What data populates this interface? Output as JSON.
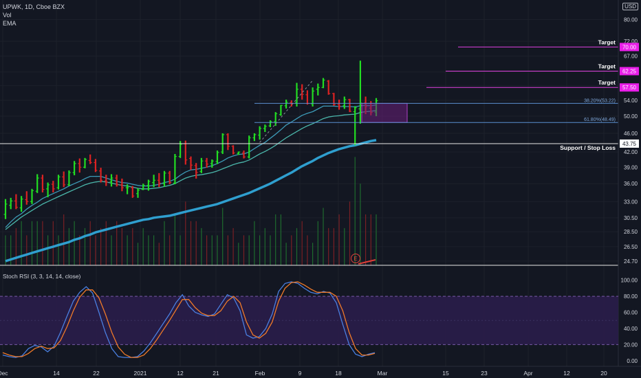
{
  "header": {
    "title": "UPWK, 1D, Cboe BZX",
    "indicator_1": "Vol",
    "indicator_2": "EMA",
    "currency": "USD"
  },
  "colors": {
    "background": "#131722",
    "up": "#22dd22",
    "down": "#dd2222",
    "ema_fast": "#1fa39a",
    "ema_slow": "#2f9fcf",
    "target_line": "#e040e0",
    "target_label_bg": "#e91ee9",
    "fib_line": "#5b8fd0",
    "rsi_k": "#4a7fe0",
    "rsi_d": "#f07a28",
    "rsi_band": "#2a1d4a"
  },
  "chart_data": [
    {
      "type": "candlestick",
      "price_axis": {
        "ticks": [
          "80.00",
          "72.00",
          "67.00",
          "62.00",
          "58.00",
          "54.00",
          "50.00",
          "46.00",
          "42.00",
          "39.00",
          "36.00",
          "33.00",
          "30.50",
          "28.50",
          "26.50",
          "24.70"
        ],
        "scale": "log",
        "range": [
          24.2,
          88
        ]
      },
      "time_axis": {
        "ticks": [
          "Dec",
          "14",
          "22",
          "2021",
          "12",
          "21",
          "Feb",
          "9",
          "18",
          "Mar",
          "15",
          "23",
          "Apr",
          "12",
          "20"
        ]
      },
      "ohlc": [
        [
          31.0,
          33.4,
          30.3,
          32.6
        ],
        [
          32.4,
          33.6,
          31.8,
          33.1
        ],
        [
          33.1,
          34.2,
          31.8,
          32.1
        ],
        [
          32.0,
          33.9,
          31.4,
          33.4
        ],
        [
          33.3,
          34.7,
          32.5,
          33.0
        ],
        [
          33.0,
          35.1,
          32.6,
          34.8
        ],
        [
          34.7,
          37.7,
          34.4,
          37.0
        ],
        [
          37.0,
          37.6,
          34.5,
          35.0
        ],
        [
          35.1,
          36.2,
          33.7,
          35.8
        ],
        [
          35.9,
          36.5,
          34.5,
          35.1
        ],
        [
          35.3,
          37.6,
          35.0,
          37.2
        ],
        [
          37.2,
          38.2,
          35.4,
          35.8
        ],
        [
          35.8,
          38.4,
          35.6,
          38.0
        ],
        [
          38.0,
          40.2,
          37.5,
          39.7
        ],
        [
          39.7,
          40.7,
          38.0,
          39.0
        ],
        [
          39.0,
          40.8,
          38.8,
          40.5
        ],
        [
          40.3,
          41.5,
          39.6,
          39.9
        ],
        [
          39.9,
          40.6,
          38.1,
          38.4
        ],
        [
          38.3,
          38.9,
          36.2,
          36.6
        ],
        [
          36.5,
          37.6,
          35.6,
          36.3
        ],
        [
          36.4,
          37.7,
          35.5,
          37.0
        ],
        [
          37.0,
          37.6,
          35.5,
          35.8
        ],
        [
          35.8,
          36.9,
          34.7,
          35.3
        ],
        [
          35.3,
          35.9,
          34.2,
          35.3
        ],
        [
          35.3,
          35.6,
          33.6,
          33.9
        ],
        [
          34.3,
          35.2,
          33.6,
          34.9
        ],
        [
          35.0,
          36.0,
          34.9,
          35.7
        ],
        [
          35.7,
          36.7,
          34.8,
          36.4
        ],
        [
          36.2,
          37.6,
          35.4,
          36.6
        ],
        [
          36.6,
          37.9,
          35.4,
          36.1
        ],
        [
          36.0,
          38.3,
          35.5,
          37.9
        ],
        [
          37.9,
          38.3,
          35.9,
          36.2
        ],
        [
          36.1,
          41.6,
          35.9,
          41.1
        ],
        [
          41.1,
          44.3,
          40.8,
          43.6
        ],
        [
          43.7,
          44.4,
          39.5,
          40.4
        ],
        [
          40.7,
          41.1,
          38.5,
          39.4
        ],
        [
          39.3,
          39.8,
          36.9,
          38.0
        ],
        [
          38.2,
          40.8,
          37.9,
          40.2
        ],
        [
          40.2,
          40.8,
          38.9,
          39.6
        ],
        [
          39.7,
          40.5,
          38.9,
          40.2
        ],
        [
          40.1,
          42.3,
          39.6,
          41.9
        ],
        [
          42.0,
          46.0,
          41.6,
          45.7
        ],
        [
          45.7,
          46.0,
          42.4,
          43.2
        ],
        [
          43.2,
          43.4,
          41.5,
          41.8
        ],
        [
          41.7,
          42.1,
          41.4,
          42.0
        ],
        [
          41.8,
          42.3,
          40.7,
          41.0
        ],
        [
          41.0,
          45.5,
          40.7,
          45.0
        ],
        [
          45.0,
          46.0,
          44.3,
          45.7
        ],
        [
          45.6,
          47.6,
          44.6,
          47.1
        ],
        [
          47.1,
          48.0,
          46.3,
          47.6
        ],
        [
          47.7,
          49.0,
          47.4,
          48.7
        ],
        [
          48.7,
          51.0,
          47.7,
          50.6
        ],
        [
          50.4,
          52.8,
          50.1,
          52.7
        ],
        [
          52.6,
          54.2,
          51.9,
          53.5
        ],
        [
          53.4,
          54.0,
          52.4,
          53.2
        ],
        [
          53.4,
          58.8,
          52.4,
          57.0
        ],
        [
          57.0,
          58.4,
          54.2,
          55.6
        ],
        [
          55.5,
          56.7,
          52.9,
          53.2
        ],
        [
          53.1,
          57.5,
          52.4,
          56.5
        ],
        [
          57.0,
          58.6,
          55.3,
          57.5
        ],
        [
          57.5,
          60.2,
          57.3,
          59.6
        ],
        [
          59.3,
          59.6,
          55.5,
          55.8
        ],
        [
          55.8,
          56.0,
          52.6,
          52.9
        ],
        [
          52.9,
          54.2,
          51.6,
          52.5
        ],
        [
          52.6,
          55.0,
          51.8,
          54.2
        ],
        [
          54.2,
          54.4,
          51.0,
          51.2
        ],
        [
          51.1,
          52.5,
          43.4,
          52.1
        ],
        [
          51.8,
          65.5,
          48.2,
          53.3
        ],
        [
          53.3,
          55.0,
          50.5,
          52.4
        ],
        [
          52.0,
          53.8,
          50.2,
          50.9
        ],
        [
          51.0,
          54.6,
          50.0,
          53.9
        ]
      ],
      "volume": [
        28,
        28,
        29,
        30,
        28,
        30,
        30,
        30,
        28,
        30,
        28,
        31,
        29,
        30,
        28,
        29,
        30,
        28,
        29,
        30,
        28,
        30,
        29,
        28,
        29,
        27,
        29,
        28,
        28,
        27,
        30,
        28,
        31,
        28,
        33,
        30,
        30,
        29,
        28,
        28,
        28,
        32,
        28,
        29,
        27,
        28,
        28,
        30,
        28,
        29,
        28,
        31,
        31,
        27,
        28,
        29,
        30,
        28,
        27,
        30,
        32,
        29,
        29,
        31,
        29,
        33,
        41,
        36,
        31,
        31,
        31
      ],
      "ema_fast": [
        29.1,
        29.9,
        30.6,
        31.1,
        31.8,
        32.4,
        32.9,
        33.5,
        33.9,
        34.3,
        34.7,
        35.1,
        35.6,
        36.0,
        36.4,
        36.9,
        37.3,
        37.3,
        37.3,
        37.0,
        36.7,
        36.4,
        36.2,
        36.1,
        35.9,
        35.7,
        35.6,
        35.6,
        35.7,
        35.9,
        36.2,
        36.4,
        36.8,
        37.5,
        38.1,
        38.5,
        38.6,
        38.8,
        39.0,
        39.3,
        39.7,
        40.2,
        40.8,
        41.2,
        41.5,
        41.6,
        42.0,
        42.7,
        43.4,
        44.0,
        44.9,
        45.8,
        46.8,
        47.9,
        48.6,
        49.4,
        50.2,
        50.7,
        51.1,
        51.8,
        52.5,
        52.5,
        52.5,
        52.4,
        52.4,
        52.4,
        52.3,
        52.6,
        52.7,
        52.6,
        52.8
      ],
      "ema_mid": [
        28.8,
        29.4,
        30.0,
        30.6,
        31.1,
        31.6,
        32.1,
        32.6,
        33.0,
        33.4,
        33.8,
        34.2,
        34.6,
        35.0,
        35.4,
        35.8,
        36.1,
        36.3,
        36.4,
        36.3,
        36.1,
        35.9,
        35.7,
        35.6,
        35.4,
        35.2,
        35.1,
        35.1,
        35.2,
        35.3,
        35.5,
        35.7,
        36.0,
        36.5,
        37.0,
        37.3,
        37.5,
        37.6,
        37.8,
        38.0,
        38.3,
        38.7,
        39.1,
        39.5,
        39.8,
        40.0,
        40.4,
        41.0,
        41.6,
        42.1,
        42.7,
        43.4,
        44.2,
        45.0,
        45.7,
        46.4,
        47.1,
        47.7,
        48.2,
        48.8,
        49.4,
        49.8,
        50.0,
        50.1,
        50.3,
        50.4,
        50.5,
        50.9,
        51.1,
        51.2,
        51.4
      ],
      "ema_slow": [
        24.7,
        24.9,
        25.1,
        25.3,
        25.5,
        25.7,
        25.9,
        26.1,
        26.3,
        26.5,
        26.7,
        26.9,
        27.1,
        27.4,
        27.6,
        27.9,
        28.1,
        28.4,
        28.6,
        28.8,
        29.0,
        29.2,
        29.4,
        29.6,
        29.8,
        30.0,
        30.2,
        30.3,
        30.5,
        30.6,
        30.7,
        30.8,
        31.0,
        31.2,
        31.4,
        31.6,
        31.8,
        32.0,
        32.2,
        32.4,
        32.6,
        32.9,
        33.2,
        33.5,
        33.8,
        34.1,
        34.4,
        34.8,
        35.2,
        35.6,
        36.0,
        36.5,
        37.0,
        37.5,
        38.0,
        38.6,
        39.2,
        39.7,
        40.2,
        40.8,
        41.3,
        41.8,
        42.2,
        42.6,
        42.9,
        43.2,
        43.4,
        43.7,
        44.0,
        44.3,
        44.5
      ],
      "annotations": {
        "targets": [
          {
            "label": "Target",
            "price": 70.0,
            "price_label": "70.00"
          },
          {
            "label": "Target",
            "price": 62.25,
            "price_label": "62.25"
          },
          {
            "label": "Target",
            "price": 57.5,
            "price_label": "57.50"
          }
        ],
        "support": {
          "label": "Support / Stop Loss",
          "price": 43.75,
          "price_label": "43.75"
        },
        "fib_levels": [
          {
            "label": "38.20%(53.22)",
            "price": 53.22
          },
          {
            "label": "61.80%(48.49)",
            "price": 48.49
          }
        ],
        "zone": {
          "top": 53.22,
          "bottom": 48.49
        },
        "earnings_marker": "E"
      }
    },
    {
      "type": "line",
      "title": "Stoch RSI (3, 3, 14, 14, close)",
      "ylim": [
        -7,
        110
      ],
      "y_ticks": [
        "100.00",
        "80.00",
        "60.00",
        "40.00",
        "20.00",
        "0.00"
      ],
      "band": [
        20,
        80
      ],
      "series": [
        {
          "name": "K",
          "values": [
            7,
            5,
            4,
            6,
            15,
            19,
            17,
            11,
            18,
            35,
            55,
            74,
            85,
            92,
            84,
            60,
            35,
            15,
            5,
            4,
            4,
            5,
            12,
            22,
            34,
            46,
            58,
            72,
            82,
            68,
            60,
            57,
            55,
            58,
            70,
            82,
            78,
            62,
            32,
            28,
            30,
            40,
            58,
            86,
            96,
            98,
            96,
            90,
            85,
            83,
            86,
            84,
            72,
            45,
            20,
            8,
            5,
            8,
            10
          ]
        },
        {
          "name": "D",
          "values": [
            10,
            7,
            5,
            5,
            9,
            15,
            18,
            15,
            16,
            25,
            42,
            62,
            79,
            88,
            88,
            78,
            58,
            35,
            17,
            8,
            4,
            4,
            7,
            15,
            26,
            38,
            50,
            63,
            76,
            76,
            66,
            59,
            56,
            56,
            62,
            74,
            80,
            72,
            48,
            32,
            28,
            34,
            48,
            74,
            90,
            97,
            98,
            94,
            89,
            85,
            85,
            85,
            80,
            62,
            35,
            15,
            7,
            7,
            9
          ]
        }
      ]
    }
  ]
}
